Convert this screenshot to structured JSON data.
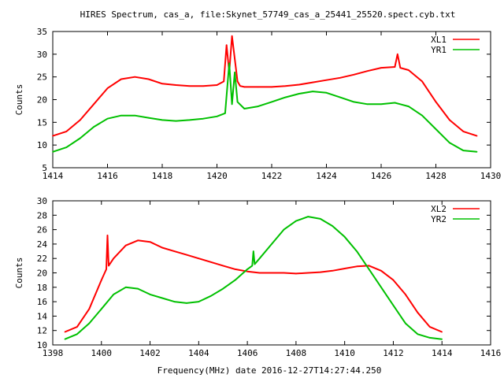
{
  "title": "HIRES Spectrum, cas_a, file:Skynet_57749_cas_a_25441_25520.spect.cyb.txt",
  "xlabel": "Frequency(MHz) date 2016-12-27T14:27:44.250",
  "colors": {
    "red": "#ff0000",
    "green": "#00c000"
  },
  "chart_data": [
    {
      "type": "line",
      "ylabel": "Counts",
      "xlim": [
        1414,
        1430
      ],
      "ylim": [
        5,
        35
      ],
      "xticks": [
        1414,
        1416,
        1418,
        1420,
        1422,
        1424,
        1426,
        1428,
        1430
      ],
      "yticks": [
        5,
        10,
        15,
        20,
        25,
        30,
        35
      ],
      "legend_position": "top-right",
      "series": [
        {
          "name": "XL1",
          "color": "#ff0000",
          "x": [
            1414.0,
            1414.5,
            1415.0,
            1415.5,
            1416.0,
            1416.5,
            1417.0,
            1417.5,
            1418.0,
            1418.5,
            1419.0,
            1419.5,
            1420.0,
            1420.25,
            1420.35,
            1420.45,
            1420.55,
            1420.65,
            1420.75,
            1420.85,
            1421.0,
            1421.5,
            1422.0,
            1422.5,
            1423.0,
            1423.5,
            1424.0,
            1424.5,
            1425.0,
            1425.5,
            1426.0,
            1426.5,
            1426.6,
            1426.7,
            1427.0,
            1427.5,
            1428.0,
            1428.5,
            1429.0,
            1429.5
          ],
          "y": [
            12.0,
            13.0,
            15.5,
            19.0,
            22.5,
            24.5,
            25.0,
            24.5,
            23.5,
            23.2,
            23.0,
            23.0,
            23.2,
            24.0,
            32.0,
            26.0,
            34.0,
            29.0,
            24.0,
            23.0,
            22.8,
            22.8,
            22.8,
            23.0,
            23.3,
            23.8,
            24.3,
            24.8,
            25.5,
            26.3,
            27.0,
            27.2,
            30.0,
            27.0,
            26.5,
            24.0,
            19.5,
            15.5,
            13.0,
            12.0
          ]
        },
        {
          "name": "YR1",
          "color": "#00c000",
          "x": [
            1414.0,
            1414.5,
            1415.0,
            1415.5,
            1416.0,
            1416.5,
            1417.0,
            1417.5,
            1418.0,
            1418.5,
            1419.0,
            1419.5,
            1420.0,
            1420.3,
            1420.45,
            1420.55,
            1420.65,
            1420.75,
            1421.0,
            1421.5,
            1422.0,
            1422.5,
            1423.0,
            1423.5,
            1424.0,
            1424.5,
            1425.0,
            1425.5,
            1426.0,
            1426.5,
            1427.0,
            1427.5,
            1428.0,
            1428.5,
            1429.0,
            1429.5
          ],
          "y": [
            8.5,
            9.5,
            11.5,
            14.0,
            15.8,
            16.5,
            16.5,
            16.0,
            15.5,
            15.3,
            15.5,
            15.8,
            16.3,
            17.0,
            28.0,
            19.0,
            26.0,
            19.5,
            18.0,
            18.5,
            19.5,
            20.5,
            21.3,
            21.8,
            21.5,
            20.5,
            19.5,
            19.0,
            19.0,
            19.3,
            18.5,
            16.5,
            13.5,
            10.5,
            8.8,
            8.5
          ]
        }
      ]
    },
    {
      "type": "line",
      "ylabel": "Counts",
      "xlim": [
        1398,
        1416
      ],
      "ylim": [
        10,
        30
      ],
      "xticks": [
        1398,
        1400,
        1402,
        1404,
        1406,
        1408,
        1410,
        1412,
        1414,
        1416
      ],
      "yticks": [
        10,
        12,
        14,
        16,
        18,
        20,
        22,
        24,
        26,
        28,
        30
      ],
      "legend_position": "top-right",
      "series": [
        {
          "name": "XL2",
          "color": "#ff0000",
          "x": [
            1398.5,
            1399.0,
            1399.5,
            1400.0,
            1400.2,
            1400.25,
            1400.3,
            1400.5,
            1401.0,
            1401.5,
            1402.0,
            1402.5,
            1403.0,
            1403.5,
            1404.0,
            1404.5,
            1405.0,
            1405.5,
            1406.0,
            1406.5,
            1407.0,
            1407.5,
            1408.0,
            1408.5,
            1409.0,
            1409.5,
            1410.0,
            1410.5,
            1411.0,
            1411.5,
            1412.0,
            1412.5,
            1413.0,
            1413.5,
            1414.0
          ],
          "y": [
            11.8,
            12.5,
            15.0,
            19.0,
            20.5,
            25.2,
            21.0,
            22.0,
            23.8,
            24.5,
            24.3,
            23.5,
            23.0,
            22.5,
            22.0,
            21.5,
            21.0,
            20.5,
            20.2,
            20.0,
            20.0,
            20.0,
            19.9,
            20.0,
            20.1,
            20.3,
            20.6,
            20.9,
            21.0,
            20.3,
            19.0,
            17.0,
            14.5,
            12.5,
            11.8
          ]
        },
        {
          "name": "YR2",
          "color": "#00c000",
          "x": [
            1398.5,
            1399.0,
            1399.5,
            1400.0,
            1400.5,
            1401.0,
            1401.5,
            1402.0,
            1402.5,
            1403.0,
            1403.5,
            1404.0,
            1404.5,
            1405.0,
            1405.5,
            1406.0,
            1406.2,
            1406.25,
            1406.3,
            1406.5,
            1407.0,
            1407.5,
            1408.0,
            1408.5,
            1409.0,
            1409.5,
            1410.0,
            1410.5,
            1411.0,
            1411.5,
            1412.0,
            1412.5,
            1413.0,
            1413.5,
            1414.0
          ],
          "y": [
            10.8,
            11.5,
            13.0,
            15.0,
            17.0,
            18.0,
            17.8,
            17.0,
            16.5,
            16.0,
            15.8,
            16.0,
            16.8,
            17.8,
            19.0,
            20.5,
            21.0,
            23.0,
            21.2,
            22.0,
            24.0,
            26.0,
            27.2,
            27.8,
            27.5,
            26.5,
            25.0,
            23.0,
            20.5,
            18.0,
            15.5,
            13.0,
            11.5,
            11.0,
            10.8
          ]
        }
      ]
    }
  ]
}
